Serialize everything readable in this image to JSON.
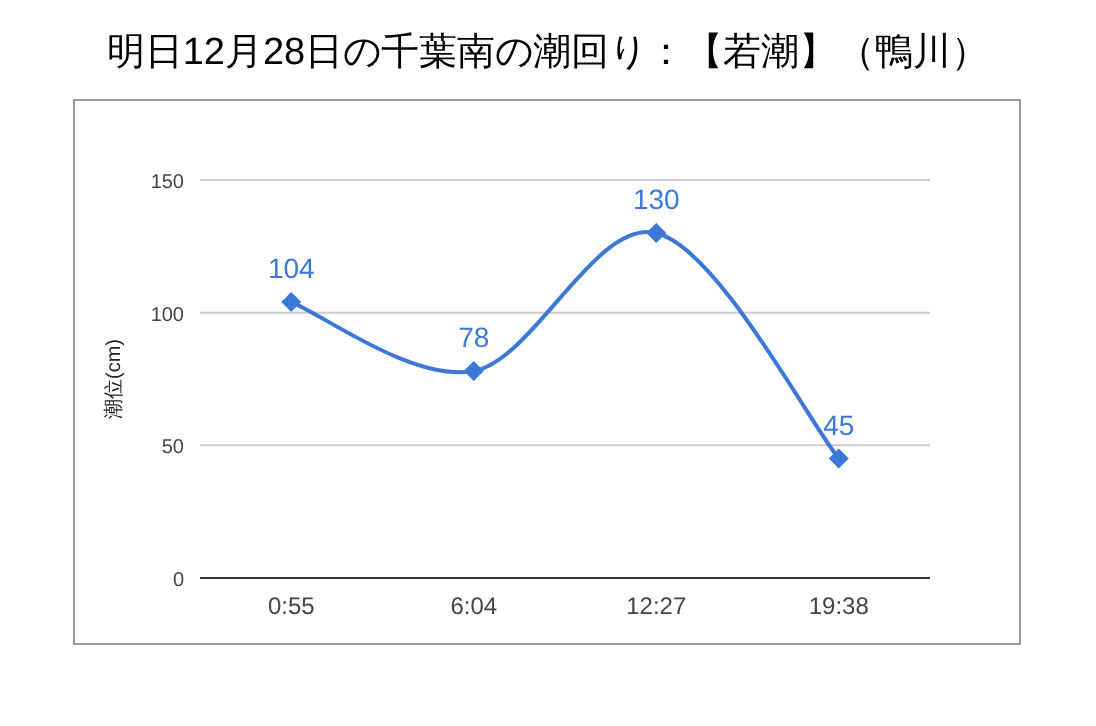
{
  "chart_data": {
    "type": "line",
    "title": "明日12月28日の千葉南の潮回り：【若潮】（鴨川）",
    "ylabel": "潮位(cm)",
    "categories": [
      "0:55",
      "6:04",
      "12:27",
      "19:38"
    ],
    "series": [
      {
        "color": "#3c78d8",
        "values": [
          104,
          78,
          130,
          45
        ]
      }
    ],
    "ylim": [
      0,
      150
    ],
    "yticks": [
      0,
      50,
      100,
      150
    ],
    "grid": "y",
    "marker": "diamond",
    "data_labels": true
  }
}
